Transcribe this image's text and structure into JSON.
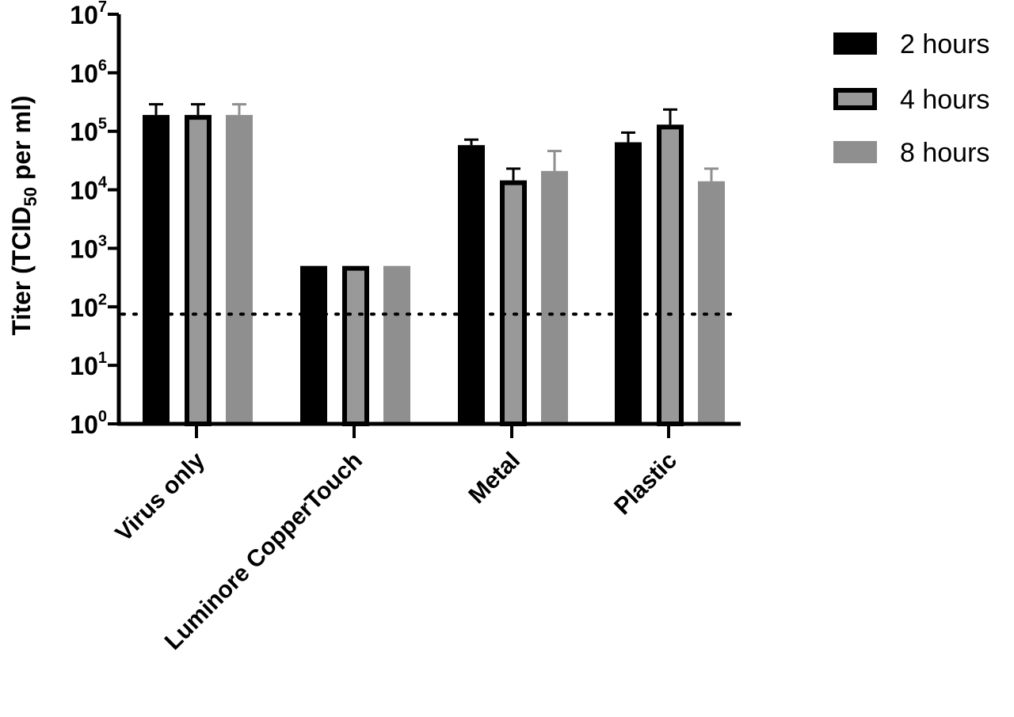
{
  "chart_data": {
    "type": "bar",
    "y_scale": "log10",
    "ylim": [
      1,
      10000000
    ],
    "ylabel": {
      "prefix": "Titer (TCID",
      "subscript": "50",
      "suffix": " per ml)"
    },
    "y_ticks": [
      {
        "base": "10",
        "exp": "0",
        "value": 1
      },
      {
        "base": "10",
        "exp": "1",
        "value": 10
      },
      {
        "base": "10",
        "exp": "2",
        "value": 100
      },
      {
        "base": "10",
        "exp": "3",
        "value": 1000
      },
      {
        "base": "10",
        "exp": "4",
        "value": 10000
      },
      {
        "base": "10",
        "exp": "5",
        "value": 100000
      },
      {
        "base": "10",
        "exp": "6",
        "value": 1000000
      },
      {
        "base": "10",
        "exp": "7",
        "value": 10000000
      }
    ],
    "categories": [
      "Virus only",
      "Luminore CopperTouch",
      "Metal",
      "Plastic"
    ],
    "series": [
      {
        "name": "2 hours",
        "color": "#000000",
        "outline": "#000000",
        "values": [
          190000,
          500,
          58000,
          65000
        ],
        "errors": [
          290000,
          null,
          72000,
          95000
        ]
      },
      {
        "name": "4 hours",
        "color": "#999999",
        "outline": "#000000",
        "values": [
          190000,
          500,
          14500,
          130000
        ],
        "errors": [
          290000,
          null,
          23000,
          235000
        ]
      },
      {
        "name": "8 hours",
        "color": "#8f8f8f",
        "outline": "#8f8f8f",
        "values": [
          190000,
          500,
          21000,
          14000
        ],
        "errors": [
          290000,
          null,
          46000,
          23000
        ]
      }
    ],
    "reference_line": {
      "value": 75,
      "style": "dotted"
    },
    "legend_position": "top-right",
    "grid": false
  }
}
